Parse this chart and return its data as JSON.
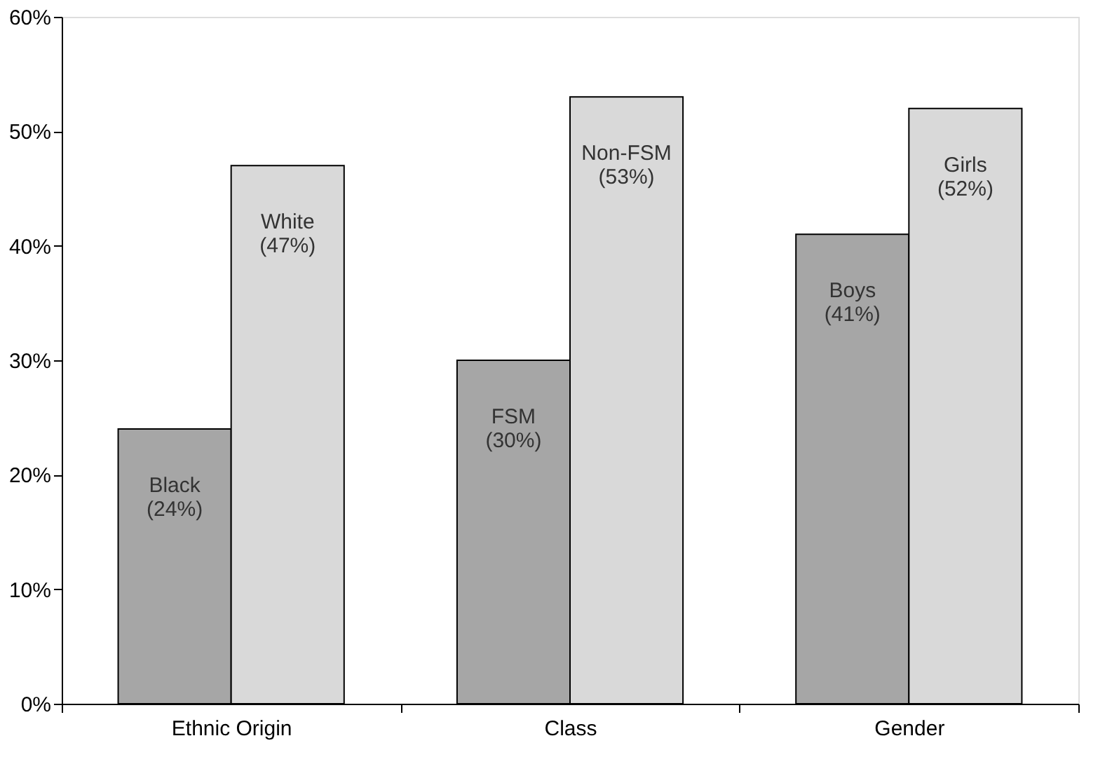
{
  "chart_data": {
    "type": "bar",
    "categories": [
      "Ethnic Origin",
      "Class",
      "Gender"
    ],
    "series": [
      {
        "color": "#a6a6a6",
        "values": [
          24,
          30,
          41
        ],
        "value_labels": [
          "Black (24%)",
          "FSM (30%)",
          "Boys (41%)"
        ]
      },
      {
        "color": "#d9d9d9",
        "values": [
          47,
          53,
          52
        ],
        "value_labels": [
          "White (47%)",
          "Non-FSM (53%)",
          "Girls (52%)"
        ]
      }
    ],
    "ylim": [
      0,
      60
    ],
    "yticks": [
      {
        "value": 0,
        "label": "0%"
      },
      {
        "value": 10,
        "label": "10%"
      },
      {
        "value": 20,
        "label": "20%"
      },
      {
        "value": 30,
        "label": "30%"
      },
      {
        "value": 40,
        "label": "40%"
      },
      {
        "value": 50,
        "label": "50%"
      },
      {
        "value": 60,
        "label": "60%"
      }
    ],
    "grid": false,
    "legend": false
  }
}
